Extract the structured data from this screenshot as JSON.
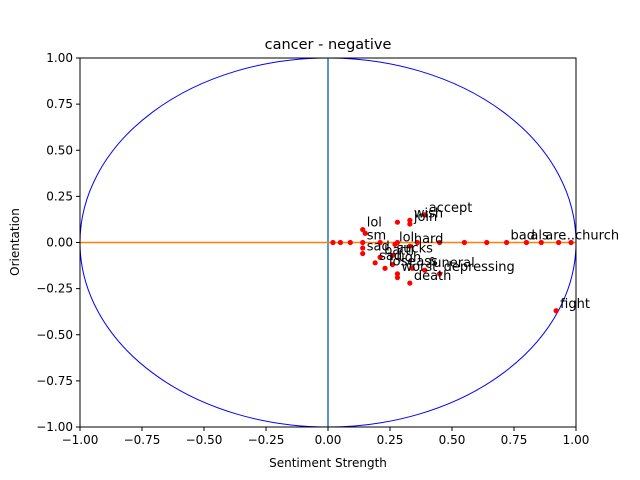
{
  "chart_data": {
    "type": "scatter",
    "title": "cancer - negative",
    "xlabel": "Sentiment Strength",
    "ylabel": "Orientation",
    "xlim": [
      -1.0,
      1.0
    ],
    "ylim": [
      -1.0,
      1.0
    ],
    "xticks": [
      "−1.00",
      "−0.75",
      "−0.50",
      "−0.25",
      "0.00",
      "0.25",
      "0.50",
      "0.75",
      "1.00"
    ],
    "yticks": [
      "−1.00",
      "−0.75",
      "−0.50",
      "−0.25",
      "0.00",
      "0.25",
      "0.50",
      "0.75",
      "1.00"
    ],
    "grid": false,
    "colors": {
      "points": "#ff0000",
      "circle": "#0000ff",
      "horizontal_line": "#ff7f0e",
      "vertical_line": "#1f77b4"
    },
    "reference_lines": [
      {
        "name": "horizontal",
        "from": [
          -1.0,
          0.0
        ],
        "to": [
          1.0,
          0.0
        ]
      },
      {
        "name": "vertical",
        "from": [
          0.0,
          -1.0
        ],
        "to": [
          0.0,
          1.0
        ]
      }
    ],
    "unit_circle": {
      "center": [
        0.0,
        0.0
      ],
      "radius": 1.0
    },
    "points": [
      {
        "x": 0.39,
        "y": 0.15,
        "label": "accept"
      },
      {
        "x": 0.33,
        "y": 0.12,
        "label": "wish"
      },
      {
        "x": 0.33,
        "y": 0.1,
        "label": "join"
      },
      {
        "x": 0.28,
        "y": 0.11,
        "label": ""
      },
      {
        "x": 0.14,
        "y": 0.07,
        "label": "lol"
      },
      {
        "x": 0.15,
        "y": 0.05,
        "label": ""
      },
      {
        "x": 0.98,
        "y": 0.0,
        "label": "church"
      },
      {
        "x": 0.93,
        "y": 0.0,
        "label": "..."
      },
      {
        "x": 0.86,
        "y": 0.0,
        "label": "are"
      },
      {
        "x": 0.8,
        "y": 0.0,
        "label": "als"
      },
      {
        "x": 0.72,
        "y": 0.0,
        "label": "bad"
      },
      {
        "x": 0.64,
        "y": 0.0,
        "label": ""
      },
      {
        "x": 0.55,
        "y": 0.0,
        "label": ""
      },
      {
        "x": 0.45,
        "y": 0.0,
        "label": ""
      },
      {
        "x": 0.36,
        "y": 0.0,
        "label": ""
      },
      {
        "x": 0.28,
        "y": 0.0,
        "label": ""
      },
      {
        "x": 0.21,
        "y": 0.0,
        "label": ""
      },
      {
        "x": 0.14,
        "y": 0.0,
        "label": "sm"
      },
      {
        "x": 0.09,
        "y": 0.0,
        "label": ""
      },
      {
        "x": 0.05,
        "y": 0.0,
        "label": ""
      },
      {
        "x": 0.02,
        "y": 0.0,
        "label": ""
      },
      {
        "x": 0.33,
        "y": -0.02,
        "label": "hard"
      },
      {
        "x": 0.27,
        "y": -0.01,
        "label": "lol"
      },
      {
        "x": 0.14,
        "y": -0.03,
        "label": ""
      },
      {
        "x": 0.14,
        "y": -0.06,
        "label": "sad"
      },
      {
        "x": 0.26,
        "y": -0.07,
        "label": "sucks"
      },
      {
        "x": 0.21,
        "y": -0.08,
        "label": "battl"
      },
      {
        "x": 0.19,
        "y": -0.11,
        "label": "sad"
      },
      {
        "x": 0.26,
        "y": -0.12,
        "label": "ugh"
      },
      {
        "x": 0.23,
        "y": -0.14,
        "label": "lose"
      },
      {
        "x": 0.34,
        "y": -0.14,
        "label": "ass"
      },
      {
        "x": 0.39,
        "y": -0.15,
        "label": "funeral"
      },
      {
        "x": 0.45,
        "y": -0.17,
        "label": "depressing"
      },
      {
        "x": 0.28,
        "y": -0.17,
        "label": "worst"
      },
      {
        "x": 0.28,
        "y": -0.19,
        "label": ""
      },
      {
        "x": 0.33,
        "y": -0.22,
        "label": "death"
      },
      {
        "x": 0.92,
        "y": -0.37,
        "label": "fight"
      }
    ]
  }
}
